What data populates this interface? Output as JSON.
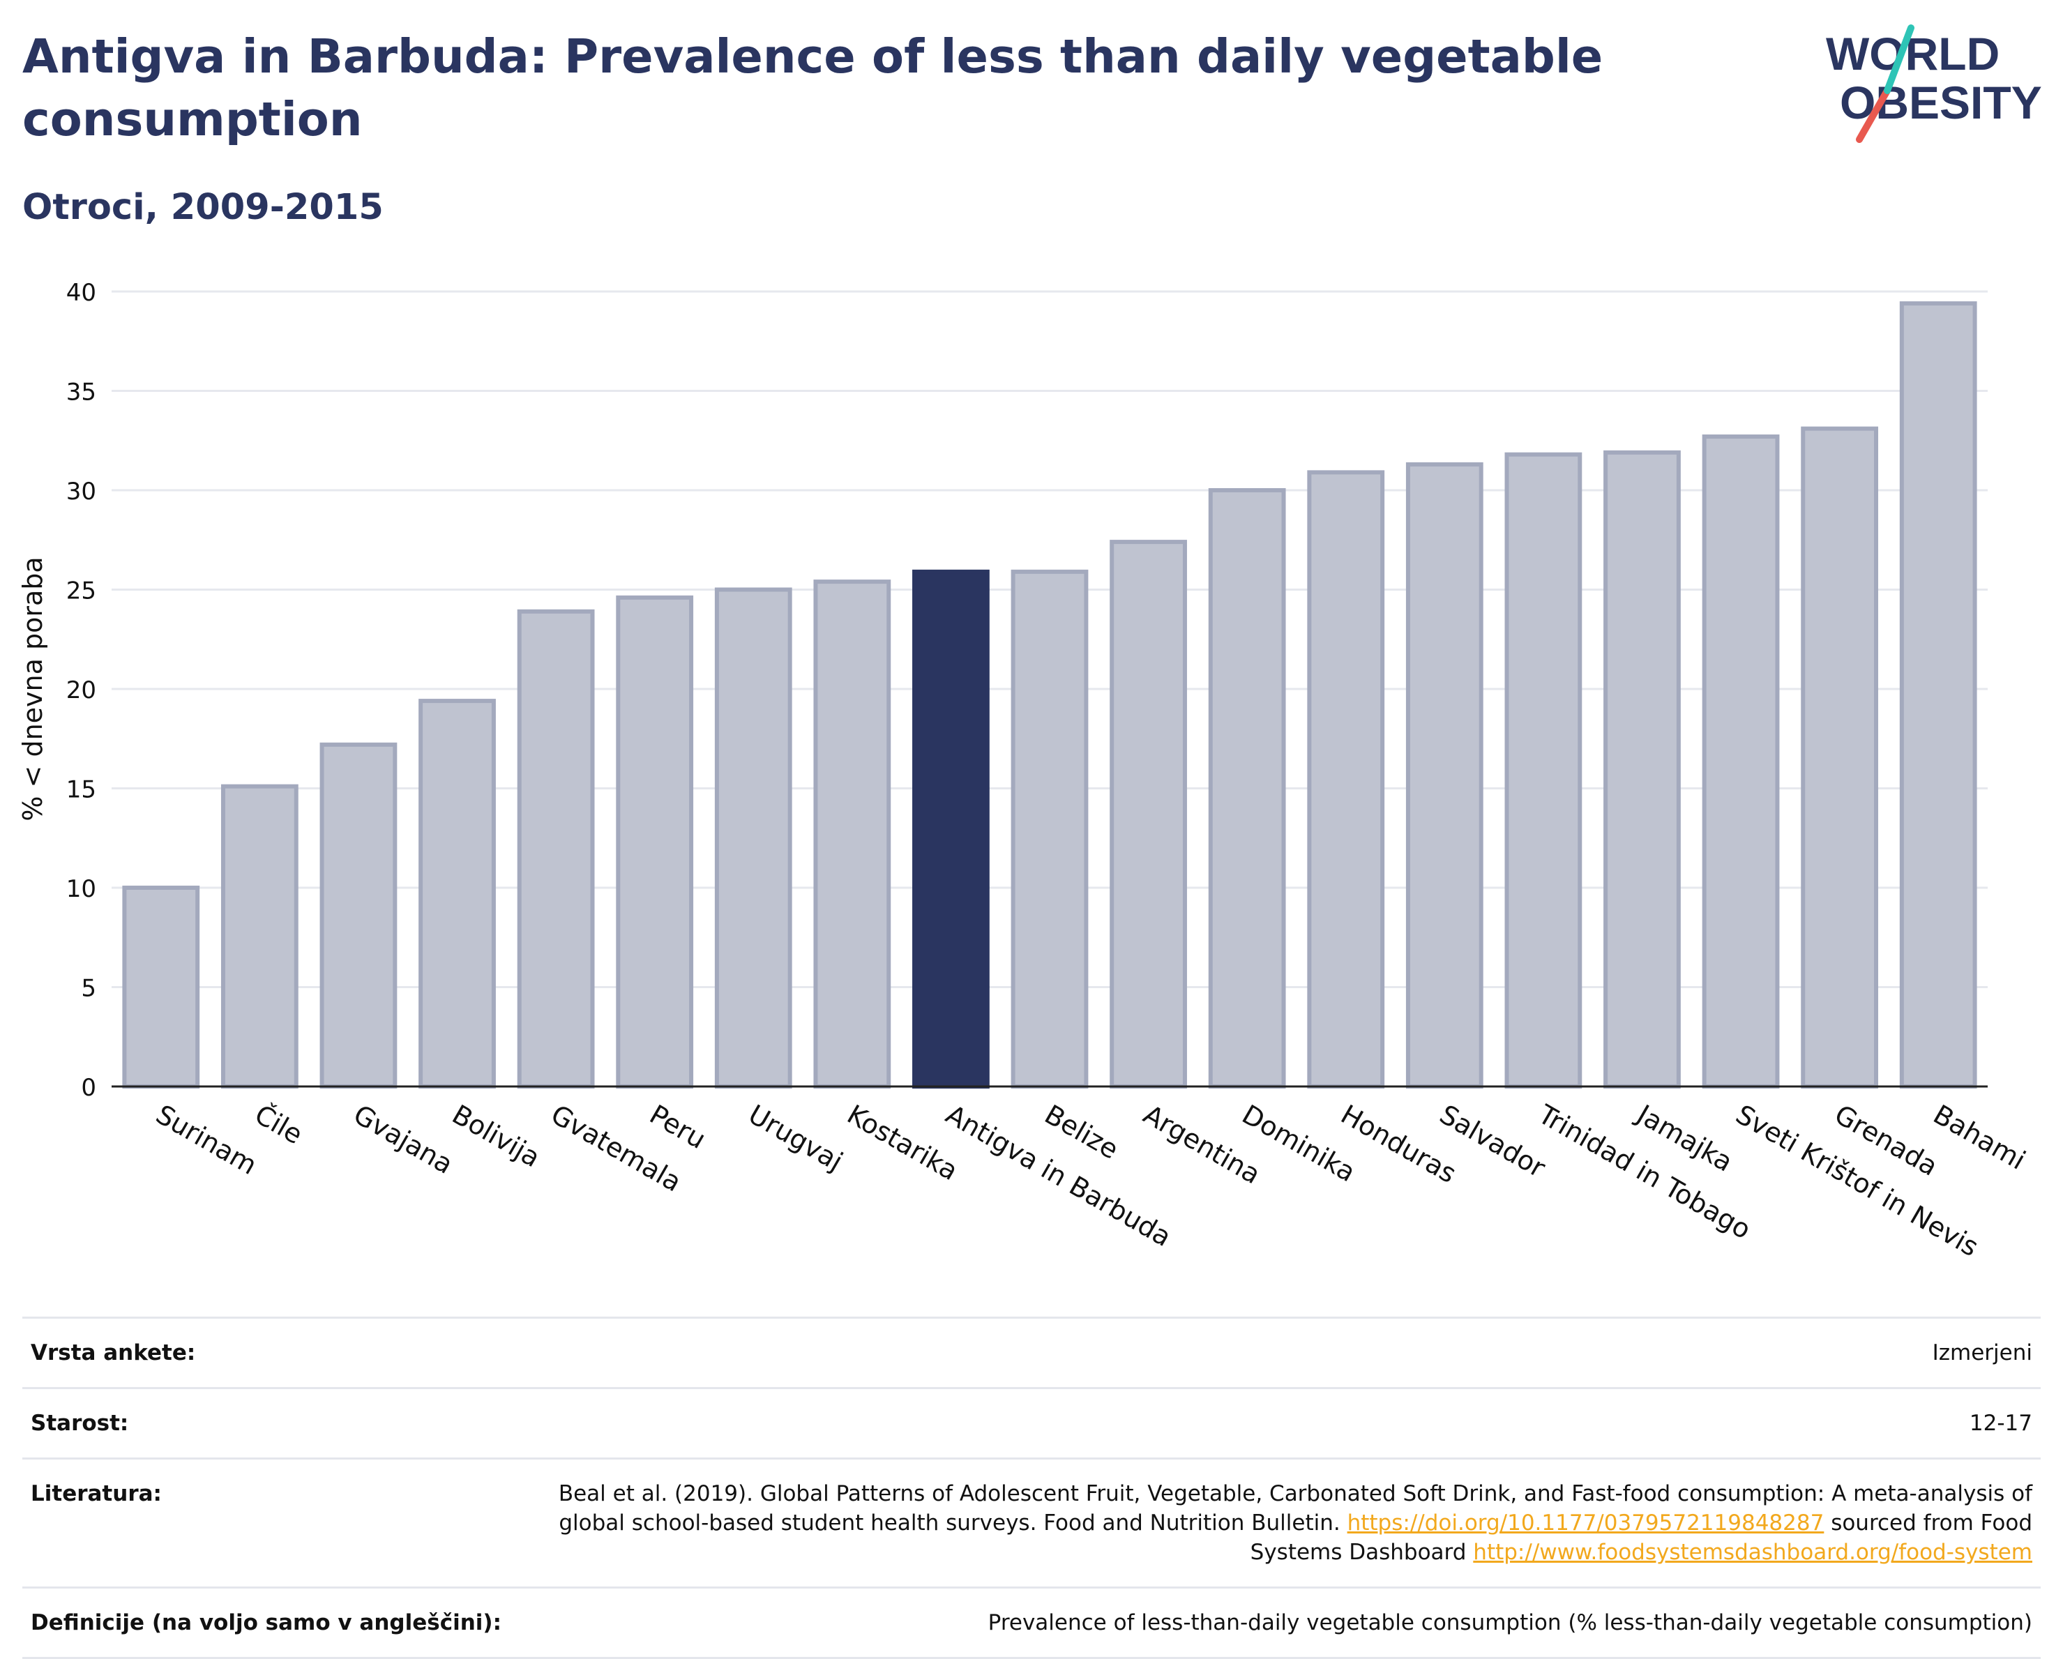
{
  "header": {
    "title": "Antigva in Barbuda: Prevalence of less than daily vegetable consumption",
    "subtitle": "Otroci, 2009-2015"
  },
  "logo": {
    "line1": "WORLD",
    "line2": "OBESITY",
    "accent_teal": "#2ec4b6",
    "accent_red": "#e8594f"
  },
  "chart_data": {
    "type": "bar",
    "ylabel": "% < dnevna poraba",
    "xlabel": "",
    "ylim": [
      0,
      40
    ],
    "yticks": [
      0,
      5,
      10,
      15,
      20,
      25,
      30,
      35,
      40
    ],
    "grid": true,
    "categories": [
      "Surinam",
      "Čile",
      "Gvajana",
      "Bolivija",
      "Gvatemala",
      "Peru",
      "Urugvaj",
      "Kostarika",
      "Antigva in Barbuda",
      "Belize",
      "Argentina",
      "Dominika",
      "Honduras",
      "Salvador",
      "Trinidad in Tobago",
      "Jamajka",
      "Sveti Krištof in Nevis",
      "Grenada",
      "Bahami"
    ],
    "values": [
      10.0,
      15.1,
      17.2,
      19.4,
      23.9,
      24.6,
      25.0,
      25.4,
      25.9,
      25.9,
      27.4,
      30.0,
      30.9,
      31.3,
      31.8,
      31.9,
      32.7,
      33.1,
      39.4
    ],
    "highlight": "Antigva in Barbuda",
    "colors": {
      "bar": "#bfc3d0",
      "bar_border": "#a3a9bd",
      "highlight": "#2a3560",
      "grid": "#e6e8ee",
      "axis": "#222222"
    }
  },
  "meta": {
    "survey_label": "Vrsta ankete:",
    "survey_value": "Izmerjeni",
    "age_label": "Starost:",
    "age_value": "12-17",
    "ref_label": "Literatura:",
    "ref_text": "Beal et al. (2019). Global Patterns of Adolescent Fruit, Vegetable, Carbonated Soft Drink, and Fast-food consumption: A meta-analysis of global school-based student health surveys. Food and Nutrition Bulletin.",
    "ref_link1": "https://doi.org/10.1177/0379572119848287",
    "ref_mid": "sourced from Food Systems Dashboard",
    "ref_link2": "http://www.foodsystemsdashboard.org/food-system",
    "def_label": "Definicije (na voljo samo v angleščini):",
    "def_value": "Prevalence of less-than-daily vegetable consumption (% less-than-daily vegetable consumption)"
  }
}
